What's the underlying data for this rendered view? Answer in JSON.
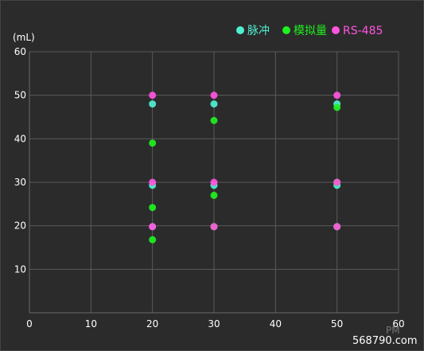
{
  "chart_data": {
    "type": "scatter",
    "y_unit_label": "(mL)",
    "x_unit_label": "PM",
    "xlim": [
      0,
      60
    ],
    "ylim": [
      0,
      60
    ],
    "x_ticks": [
      0,
      10,
      20,
      30,
      40,
      50,
      60
    ],
    "y_ticks": [
      10,
      20,
      30,
      40,
      50,
      60
    ],
    "grid": true,
    "legend_position": "top-right",
    "series": [
      {
        "name": "脉冲",
        "color": "#4ff0d0",
        "points": [
          [
            20,
            48
          ],
          [
            20,
            29.3
          ],
          [
            20,
            19.8
          ],
          [
            30,
            48
          ],
          [
            30,
            29.3
          ],
          [
            30,
            19.8
          ],
          [
            50,
            48
          ],
          [
            50,
            29.3
          ],
          [
            50,
            19.8
          ]
        ]
      },
      {
        "name": "模拟量",
        "color": "#1ff01f",
        "points": [
          [
            20,
            39
          ],
          [
            20,
            24.2
          ],
          [
            20,
            16.8
          ],
          [
            30,
            44.2
          ],
          [
            30,
            27
          ],
          [
            30,
            19.8
          ],
          [
            50,
            47.2
          ],
          [
            50,
            30
          ],
          [
            50,
            19.8
          ]
        ]
      },
      {
        "name": "RS-485",
        "color": "#ff55e0",
        "points": [
          [
            20,
            50
          ],
          [
            20,
            30
          ],
          [
            20,
            19.8
          ],
          [
            30,
            50
          ],
          [
            30,
            30
          ],
          [
            30,
            19.8
          ],
          [
            50,
            50
          ],
          [
            50,
            30
          ],
          [
            50,
            19.8
          ]
        ]
      }
    ]
  },
  "watermark": "568790.com"
}
